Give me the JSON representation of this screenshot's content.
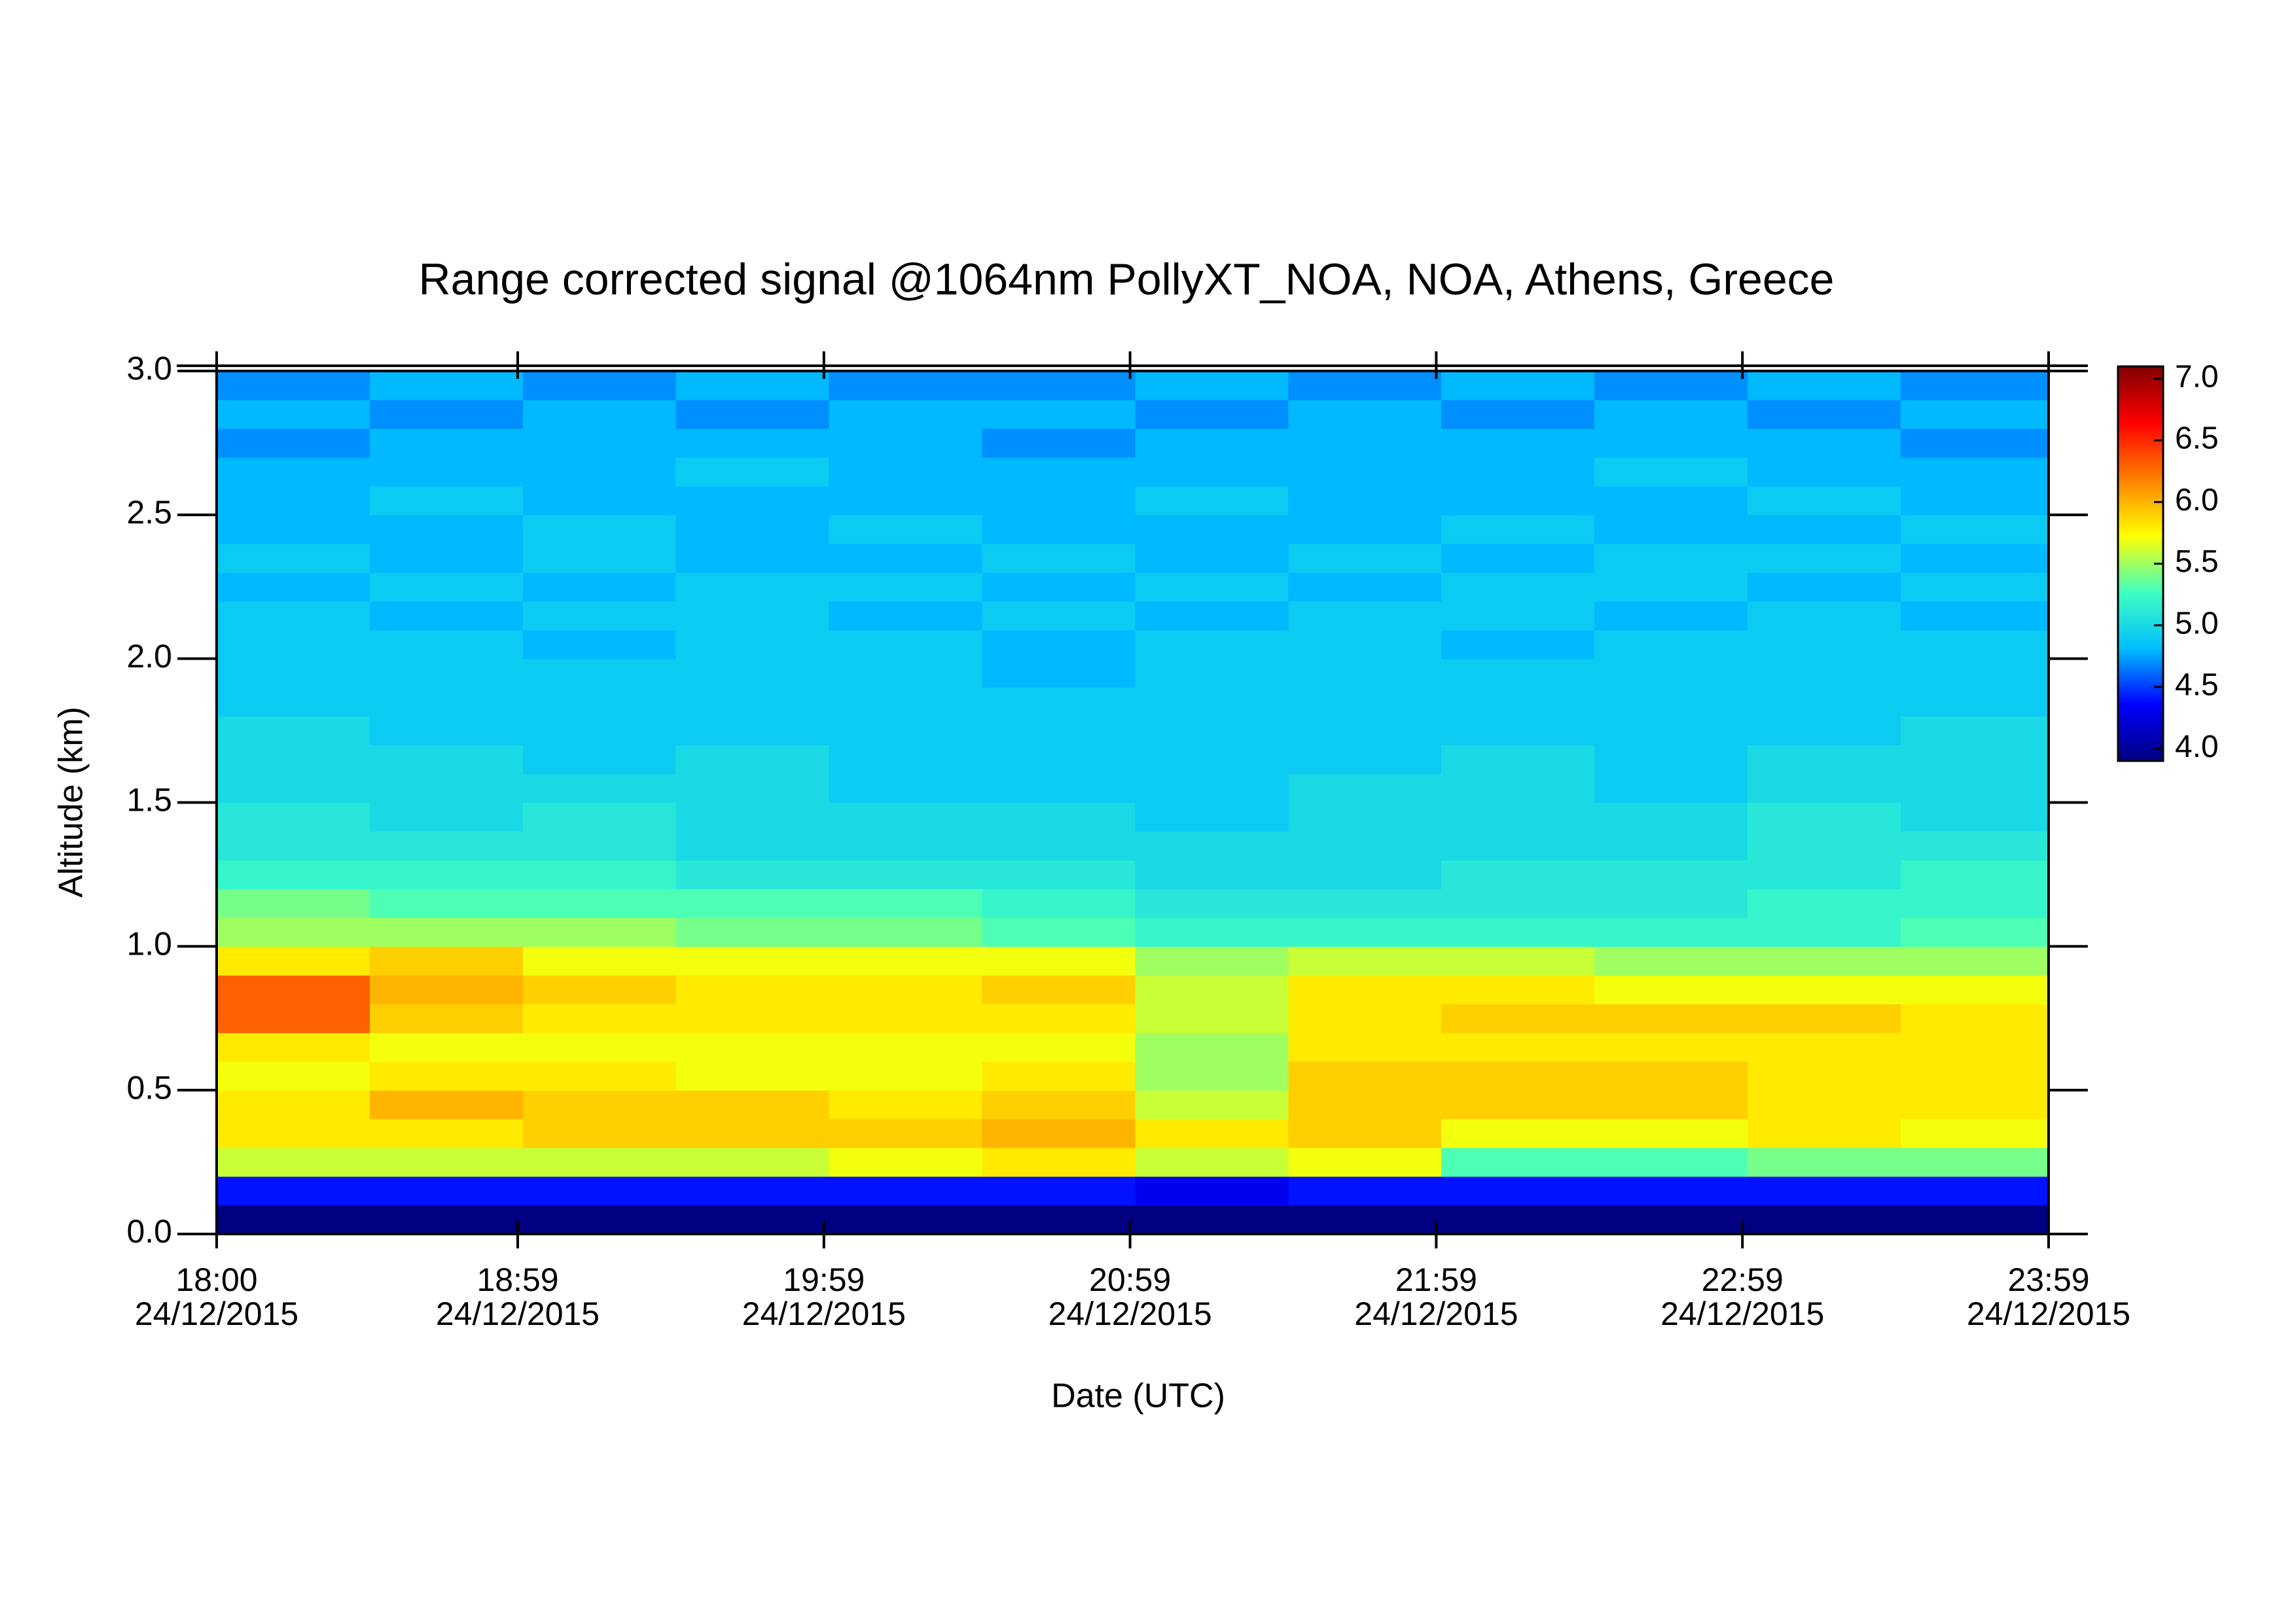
{
  "chart_data": {
    "type": "heatmap",
    "title": "Range corrected signal @1064nm  PollyXT_NOA, NOA, Athens, Greece",
    "xlabel": "Date (UTC)",
    "ylabel": "Altitude (km)",
    "xlim": [
      "2015-12-24T18:00",
      "2015-12-24T23:59"
    ],
    "xticks": [
      {
        "value": "2015-12-24T18:00",
        "label": "18:00\n24/12/2015"
      },
      {
        "value": "2015-12-24T18:59",
        "label": "18:59\n24/12/2015"
      },
      {
        "value": "2015-12-24T19:59",
        "label": "19:59\n24/12/2015"
      },
      {
        "value": "2015-12-24T20:59",
        "label": "20:59\n24/12/2015"
      },
      {
        "value": "2015-12-24T21:59",
        "label": "21:59\n24/12/2015"
      },
      {
        "value": "2015-12-24T22:59",
        "label": "22:59\n24/12/2015"
      },
      {
        "value": "2015-12-24T23:59",
        "label": "23:59\n24/12/2015"
      }
    ],
    "ylim": [
      0,
      3.0
    ],
    "yticks": [
      {
        "value": 0,
        "label": "0.0"
      },
      0.5,
      {
        "value": 1,
        "label": "1.0"
      },
      1.5,
      {
        "value": 2,
        "label": "2.0"
      },
      2.5,
      {
        "value": 3,
        "label": "3.0"
      }
    ],
    "zlim": [
      3.9,
      7.1
    ],
    "zticks": [
      {
        "value": 4,
        "label": "4.0"
      },
      4.5,
      {
        "value": 5,
        "label": "5.0"
      },
      5.5,
      {
        "value": 6,
        "label": "6.0"
      },
      6.5,
      {
        "value": 7,
        "label": "7.0"
      }
    ],
    "colormap": [
      "#000080",
      "#0000ff",
      "#00bfff",
      "#40ffc0",
      "#ffff00",
      "#ff8000",
      "#ff0000",
      "#800000"
    ],
    "x_edges": [
      "2015-12-24T18:00",
      "2015-12-24T18:30",
      "2015-12-24T19:00",
      "2015-12-24T19:30",
      "2015-12-24T20:00",
      "2015-12-24T20:30",
      "2015-12-24T21:00",
      "2015-12-24T21:30",
      "2015-12-24T22:00",
      "2015-12-24T22:30",
      "2015-12-24T23:00",
      "2015-12-24T23:30",
      "2015-12-24T23:59"
    ],
    "y_edges": [
      0,
      0.1,
      0.2,
      0.3,
      0.4,
      0.5,
      0.6,
      0.7,
      0.8,
      0.9,
      1.0,
      1.1,
      1.2,
      1.3,
      1.4,
      1.5,
      1.6,
      1.7,
      1.8,
      1.9,
      2.0,
      2.1,
      2.2,
      2.3,
      2.4,
      2.5,
      2.6,
      2.7,
      2.8,
      2.9,
      3.0
    ],
    "z": [
      [
        3.9,
        3.9,
        3.9,
        3.9,
        3.9,
        3.9,
        3.9,
        3.9,
        3.9,
        3.9,
        3.9,
        3.9
      ],
      [
        4.4,
        4.4,
        4.4,
        4.4,
        4.4,
        4.4,
        4.3,
        4.4,
        4.4,
        4.4,
        4.4,
        4.4
      ],
      [
        5.6,
        5.6,
        5.6,
        5.6,
        5.7,
        5.8,
        5.6,
        5.7,
        5.3,
        5.3,
        5.4,
        5.4
      ],
      [
        5.8,
        5.8,
        5.9,
        5.9,
        5.9,
        6.0,
        5.8,
        5.9,
        5.7,
        5.7,
        5.8,
        5.7
      ],
      [
        5.8,
        6.0,
        5.9,
        5.9,
        5.8,
        5.9,
        5.6,
        5.9,
        5.9,
        5.9,
        5.8,
        5.8
      ],
      [
        5.7,
        5.8,
        5.8,
        5.7,
        5.7,
        5.8,
        5.5,
        5.9,
        5.9,
        5.9,
        5.8,
        5.8
      ],
      [
        5.8,
        5.7,
        5.7,
        5.7,
        5.7,
        5.7,
        5.5,
        5.8,
        5.8,
        5.8,
        5.8,
        5.8
      ],
      [
        6.3,
        5.9,
        5.8,
        5.8,
        5.8,
        5.8,
        5.6,
        5.8,
        5.9,
        5.9,
        5.9,
        5.8
      ],
      [
        6.3,
        6.0,
        5.9,
        5.8,
        5.8,
        5.9,
        5.6,
        5.8,
        5.8,
        5.7,
        5.7,
        5.7
      ],
      [
        5.8,
        5.9,
        5.7,
        5.7,
        5.7,
        5.7,
        5.5,
        5.6,
        5.6,
        5.5,
        5.5,
        5.5
      ],
      [
        5.5,
        5.5,
        5.5,
        5.4,
        5.4,
        5.3,
        5.2,
        5.2,
        5.2,
        5.2,
        5.2,
        5.3
      ],
      [
        5.4,
        5.3,
        5.3,
        5.3,
        5.3,
        5.2,
        5.1,
        5.1,
        5.1,
        5.1,
        5.2,
        5.2
      ],
      [
        5.2,
        5.2,
        5.2,
        5.1,
        5.1,
        5.1,
        5.0,
        5.0,
        5.1,
        5.1,
        5.1,
        5.2
      ],
      [
        5.1,
        5.1,
        5.1,
        5.0,
        5.0,
        5.0,
        5.0,
        5.0,
        5.0,
        5.0,
        5.1,
        5.1
      ],
      [
        5.1,
        5.0,
        5.1,
        5.0,
        5.0,
        5.0,
        4.9,
        5.0,
        5.0,
        5.0,
        5.1,
        5.0
      ],
      [
        5.0,
        5.0,
        5.0,
        5.0,
        4.9,
        4.9,
        4.9,
        5.0,
        5.0,
        4.9,
        5.0,
        5.0
      ],
      [
        5.0,
        5.0,
        4.9,
        5.0,
        4.9,
        4.9,
        4.9,
        4.9,
        5.0,
        4.9,
        5.0,
        5.0
      ],
      [
        5.0,
        4.9,
        4.9,
        4.9,
        4.9,
        4.9,
        4.9,
        4.9,
        4.9,
        4.9,
        4.9,
        5.0
      ],
      [
        4.9,
        4.9,
        4.9,
        4.9,
        4.9,
        4.9,
        4.9,
        4.9,
        4.9,
        4.9,
        4.9,
        4.9
      ],
      [
        4.9,
        4.9,
        4.9,
        4.9,
        4.9,
        4.8,
        4.9,
        4.9,
        4.9,
        4.9,
        4.9,
        4.9
      ],
      [
        4.9,
        4.9,
        4.8,
        4.9,
        4.9,
        4.8,
        4.9,
        4.9,
        4.8,
        4.9,
        4.9,
        4.9
      ],
      [
        4.9,
        4.8,
        4.9,
        4.9,
        4.8,
        4.9,
        4.8,
        4.9,
        4.9,
        4.8,
        4.9,
        4.8
      ],
      [
        4.8,
        4.9,
        4.8,
        4.9,
        4.9,
        4.8,
        4.9,
        4.8,
        4.9,
        4.9,
        4.8,
        4.9
      ],
      [
        4.9,
        4.8,
        4.9,
        4.8,
        4.8,
        4.9,
        4.8,
        4.9,
        4.8,
        4.9,
        4.9,
        4.8
      ],
      [
        4.8,
        4.8,
        4.9,
        4.8,
        4.9,
        4.8,
        4.8,
        4.8,
        4.9,
        4.8,
        4.8,
        4.9
      ],
      [
        4.8,
        4.9,
        4.8,
        4.8,
        4.8,
        4.8,
        4.9,
        4.8,
        4.8,
        4.8,
        4.9,
        4.8
      ],
      [
        4.8,
        4.8,
        4.8,
        4.9,
        4.8,
        4.8,
        4.8,
        4.8,
        4.8,
        4.9,
        4.8,
        4.8
      ],
      [
        4.7,
        4.8,
        4.8,
        4.8,
        4.8,
        4.7,
        4.8,
        4.8,
        4.8,
        4.8,
        4.8,
        4.7
      ],
      [
        4.8,
        4.7,
        4.8,
        4.7,
        4.8,
        4.8,
        4.7,
        4.8,
        4.7,
        4.8,
        4.7,
        4.8
      ],
      [
        4.7,
        4.8,
        4.7,
        4.8,
        4.7,
        4.7,
        4.8,
        4.7,
        4.8,
        4.7,
        4.8,
        4.7
      ]
    ]
  }
}
